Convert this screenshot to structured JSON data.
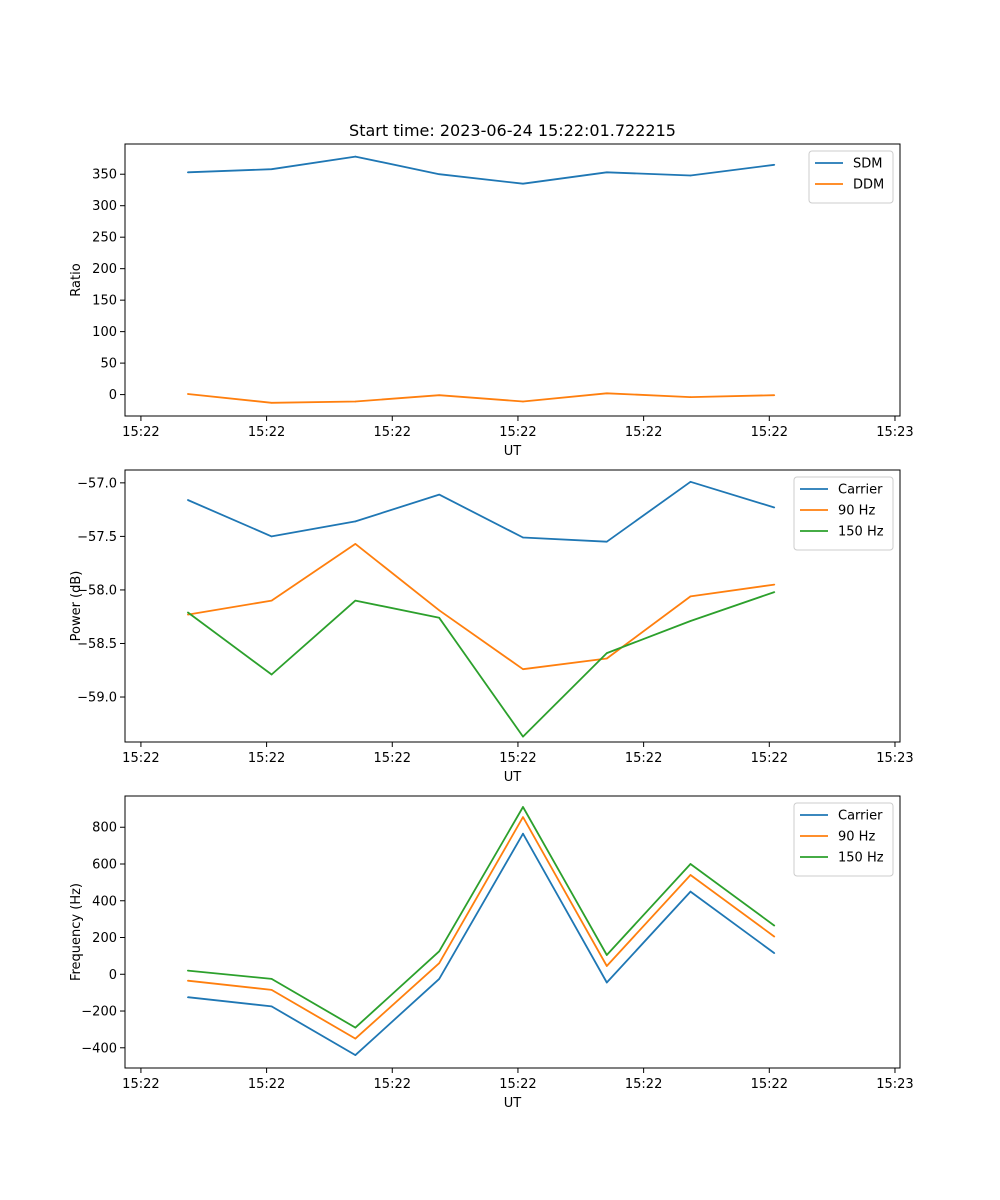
{
  "title": "Start time: 2023-06-24 15:22:01.722215",
  "colors": {
    "blue": "#1f77b4",
    "orange": "#ff7f0e",
    "green": "#2ca02c"
  },
  "chart_data": [
    {
      "type": "line",
      "title": "Start time: 2023-06-24 15:22:01.722215",
      "xlabel": "UT",
      "ylabel": "Ratio",
      "xlim": [
        0,
        9.25
      ],
      "ylim": [
        -34,
        398
      ],
      "x": [
        0.75,
        1.75,
        2.75,
        3.75,
        4.75,
        5.75,
        6.75,
        7.75
      ],
      "x_ticks": [
        0.19,
        1.69,
        3.19,
        4.69,
        6.19,
        7.69,
        9.19
      ],
      "x_tick_labels": [
        "15:22",
        "15:22",
        "15:22",
        "15:22",
        "15:22",
        "15:22",
        "15:23"
      ],
      "y_ticks": [
        0,
        50,
        100,
        150,
        200,
        250,
        300,
        350
      ],
      "y_tick_labels": [
        "0",
        "50",
        "100",
        "150",
        "200",
        "250",
        "300",
        "350"
      ],
      "legend": "top-right",
      "grid": false,
      "series": [
        {
          "name": "SDM",
          "color": "#1f77b4",
          "values": [
            353,
            358,
            378,
            350,
            335,
            353,
            348,
            365
          ]
        },
        {
          "name": "DDM",
          "color": "#ff7f0e",
          "values": [
            1,
            -13,
            -11,
            -1,
            -11,
            2,
            -4,
            -1
          ]
        }
      ]
    },
    {
      "type": "line",
      "xlabel": "UT",
      "ylabel": "Power (dB)",
      "xlim": [
        0,
        9.25
      ],
      "ylim": [
        -59.42,
        -56.88
      ],
      "x": [
        0.75,
        1.75,
        2.75,
        3.75,
        4.75,
        5.75,
        6.75,
        7.75
      ],
      "x_ticks": [
        0.19,
        1.69,
        3.19,
        4.69,
        6.19,
        7.69,
        9.19
      ],
      "x_tick_labels": [
        "15:22",
        "15:22",
        "15:22",
        "15:22",
        "15:22",
        "15:22",
        "15:23"
      ],
      "y_ticks": [
        -59.0,
        -58.5,
        -58.0,
        -57.5,
        -57.0
      ],
      "y_tick_labels": [
        "−59.0",
        "−58.5",
        "−58.0",
        "−57.5",
        "−57.0"
      ],
      "legend": "top-right",
      "grid": false,
      "series": [
        {
          "name": "Carrier",
          "color": "#1f77b4",
          "values": [
            -57.16,
            -57.5,
            -57.36,
            -57.11,
            -57.51,
            -57.55,
            -56.99,
            -57.23
          ]
        },
        {
          "name": "90 Hz",
          "color": "#ff7f0e",
          "values": [
            -58.23,
            -58.1,
            -57.57,
            -58.19,
            -58.74,
            -58.64,
            -58.06,
            -57.95
          ]
        },
        {
          "name": "150 Hz",
          "color": "#2ca02c",
          "values": [
            -58.21,
            -58.79,
            -58.1,
            -58.26,
            -59.37,
            -58.59,
            -58.29,
            -58.02
          ]
        }
      ]
    },
    {
      "type": "line",
      "xlabel": "UT",
      "ylabel": "Frequency (Hz)",
      "xlim": [
        0,
        9.25
      ],
      "ylim": [
        -510,
        970
      ],
      "x": [
        0.75,
        1.75,
        2.75,
        3.75,
        4.75,
        5.75,
        6.75,
        7.75
      ],
      "x_ticks": [
        0.19,
        1.69,
        3.19,
        4.69,
        6.19,
        7.69,
        9.19
      ],
      "x_tick_labels": [
        "15:22",
        "15:22",
        "15:22",
        "15:22",
        "15:22",
        "15:22",
        "15:23"
      ],
      "y_ticks": [
        -400,
        -200,
        0,
        200,
        400,
        600,
        800
      ],
      "y_tick_labels": [
        "−400",
        "−200",
        "0",
        "200",
        "400",
        "600",
        "800"
      ],
      "legend": "top-right",
      "grid": false,
      "series": [
        {
          "name": "Carrier",
          "color": "#1f77b4",
          "values": [
            -125,
            -175,
            -440,
            -25,
            765,
            -45,
            450,
            115
          ]
        },
        {
          "name": "90 Hz",
          "color": "#ff7f0e",
          "values": [
            -35,
            -85,
            -350,
            60,
            855,
            45,
            540,
            205
          ]
        },
        {
          "name": "150 Hz",
          "color": "#2ca02c",
          "values": [
            20,
            -25,
            -290,
            125,
            910,
            105,
            600,
            265
          ]
        }
      ]
    }
  ]
}
